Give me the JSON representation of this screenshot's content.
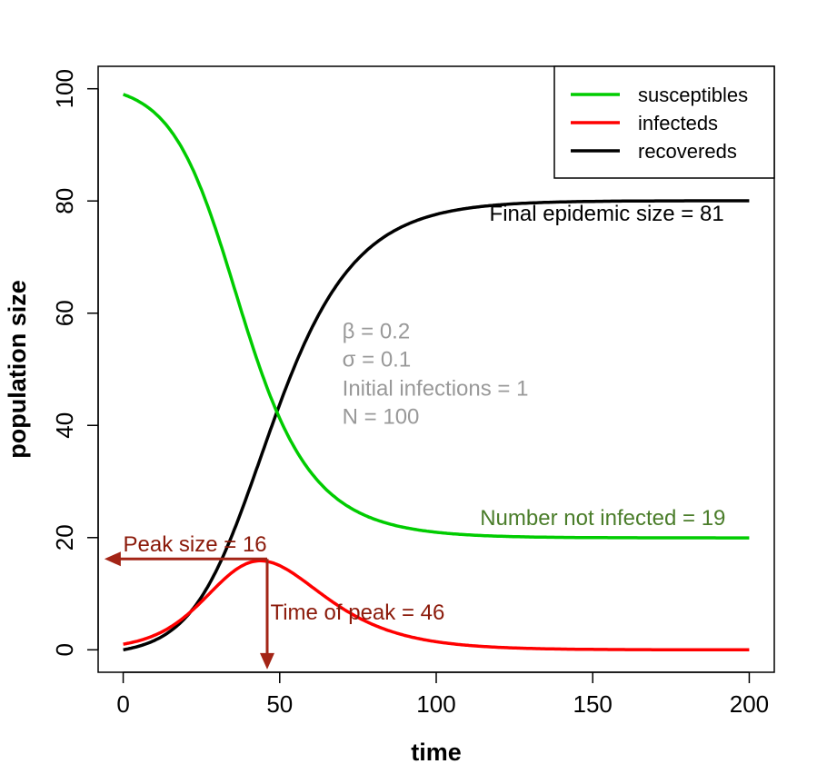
{
  "chart_data": {
    "type": "line",
    "title": "",
    "xlabel": "time",
    "ylabel": "population size",
    "xlim": [
      -8,
      208
    ],
    "ylim": [
      -4,
      104
    ],
    "xticks": [
      0,
      50,
      100,
      150,
      200
    ],
    "yticks": [
      0,
      20,
      40,
      60,
      80,
      100
    ],
    "grid": false,
    "legend_position": "top-right",
    "params": {
      "beta": 0.2,
      "sigma": 0.1,
      "initial_infections": 1,
      "N": 100
    },
    "series": [
      {
        "name": "susceptibles",
        "color": "#00cc00"
      },
      {
        "name": "infecteds",
        "color": "#ff0000"
      },
      {
        "name": "recovereds",
        "color": "#000000"
      }
    ],
    "annotations": [
      {
        "key": "params_beta",
        "text": "β = 0.2",
        "x": 70,
        "y": 55.5,
        "color": "#999999"
      },
      {
        "key": "params_sigma",
        "text": "σ = 0.1",
        "x": 70,
        "y": 50.5,
        "color": "#999999"
      },
      {
        "key": "params_init",
        "text": "Initial infections = 1",
        "x": 70,
        "y": 45.3,
        "color": "#999999"
      },
      {
        "key": "params_n",
        "text": "N = 100",
        "x": 70,
        "y": 40.3,
        "color": "#999999"
      },
      {
        "key": "final_size",
        "text": "Final epidemic size = 81",
        "x": 117,
        "y": 76.5,
        "color": "#000000"
      },
      {
        "key": "not_infected",
        "text": "Number not infected = 19",
        "x": 114,
        "y": 22.2,
        "color": "#4a7d2a"
      },
      {
        "key": "peak_size",
        "text": "Peak size = 16",
        "x": 0,
        "y": 17.5,
        "color": "#8b1a0a"
      },
      {
        "key": "time_of_peak",
        "text": "Time of peak = 46",
        "x": 47,
        "y": 5.4,
        "color": "#8b1a0a"
      }
    ],
    "peak": {
      "time": 46,
      "size": 16.2
    }
  }
}
